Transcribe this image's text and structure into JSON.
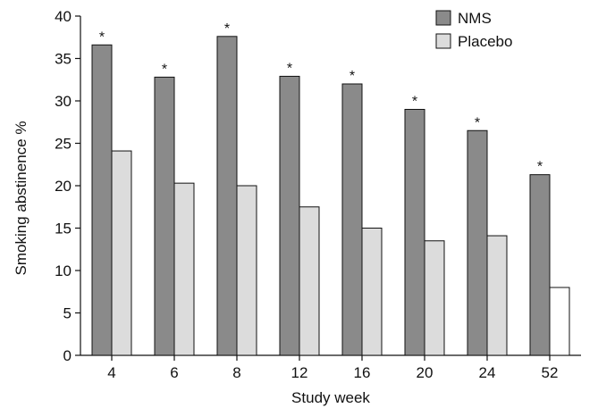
{
  "chart_data": {
    "type": "bar",
    "categories": [
      "4",
      "6",
      "8",
      "12",
      "16",
      "20",
      "24",
      "52"
    ],
    "series": [
      {
        "name": "NMS",
        "values": [
          36.6,
          32.8,
          37.6,
          32.9,
          32.0,
          29.0,
          26.5,
          21.3
        ],
        "color": "#8a8a8a"
      },
      {
        "name": "Placebo",
        "values": [
          24.1,
          20.3,
          20.0,
          17.5,
          15.0,
          13.5,
          14.1,
          8.0
        ],
        "color": "#dcdcdc",
        "last_bar_color": "#ffffff"
      }
    ],
    "significance_marker": "*",
    "significant_series": "NMS",
    "xlabel": "Study week",
    "ylabel": "Smoking abstinence %",
    "ylim": [
      0,
      40
    ],
    "yticks": [
      "0",
      "5",
      "10",
      "15",
      "20",
      "25",
      "30",
      "35",
      "40"
    ],
    "grid": false,
    "legend_position": "top-right"
  }
}
